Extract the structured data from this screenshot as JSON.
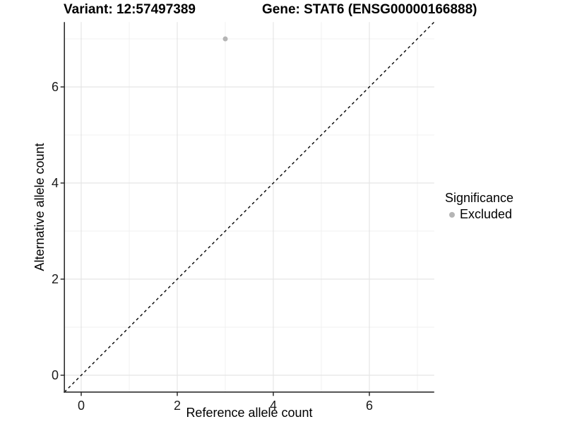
{
  "chart_data": {
    "type": "scatter",
    "title_left": "Variant: 12:57497389",
    "title_right": "Gene: STAT6 (ENSG00000166888)",
    "xlabel": "Reference allele count",
    "ylabel": "Alternative allele count",
    "xlim": [
      -0.35,
      7.35
    ],
    "ylim": [
      -0.35,
      7.35
    ],
    "x_major_ticks": [
      0,
      2,
      4,
      6
    ],
    "y_major_ticks": [
      0,
      2,
      4,
      6
    ],
    "x_minor_gridlines": [
      1,
      3,
      5,
      7
    ],
    "y_minor_gridlines": [
      1,
      3,
      5,
      7
    ],
    "grid": true,
    "abline": {
      "slope": 1,
      "intercept": 0,
      "style": "dashed",
      "color": "#000000"
    },
    "points": [
      {
        "x": 3,
        "y": 7,
        "significance": "Excluded",
        "color": "#b5b5b5"
      }
    ],
    "point_radius": 3.5,
    "legend": {
      "position": "right",
      "title": "Significance",
      "entries": [
        {
          "label": "Excluded",
          "color": "#b5b5b5"
        }
      ]
    },
    "colors": {
      "background": "#ffffff",
      "grid_major": "#e5e5e5",
      "grid_minor": "#f0f0f0",
      "axis": "#2e2e2e",
      "tick_label": "#1a1a1a",
      "title_text": "#000000"
    }
  }
}
